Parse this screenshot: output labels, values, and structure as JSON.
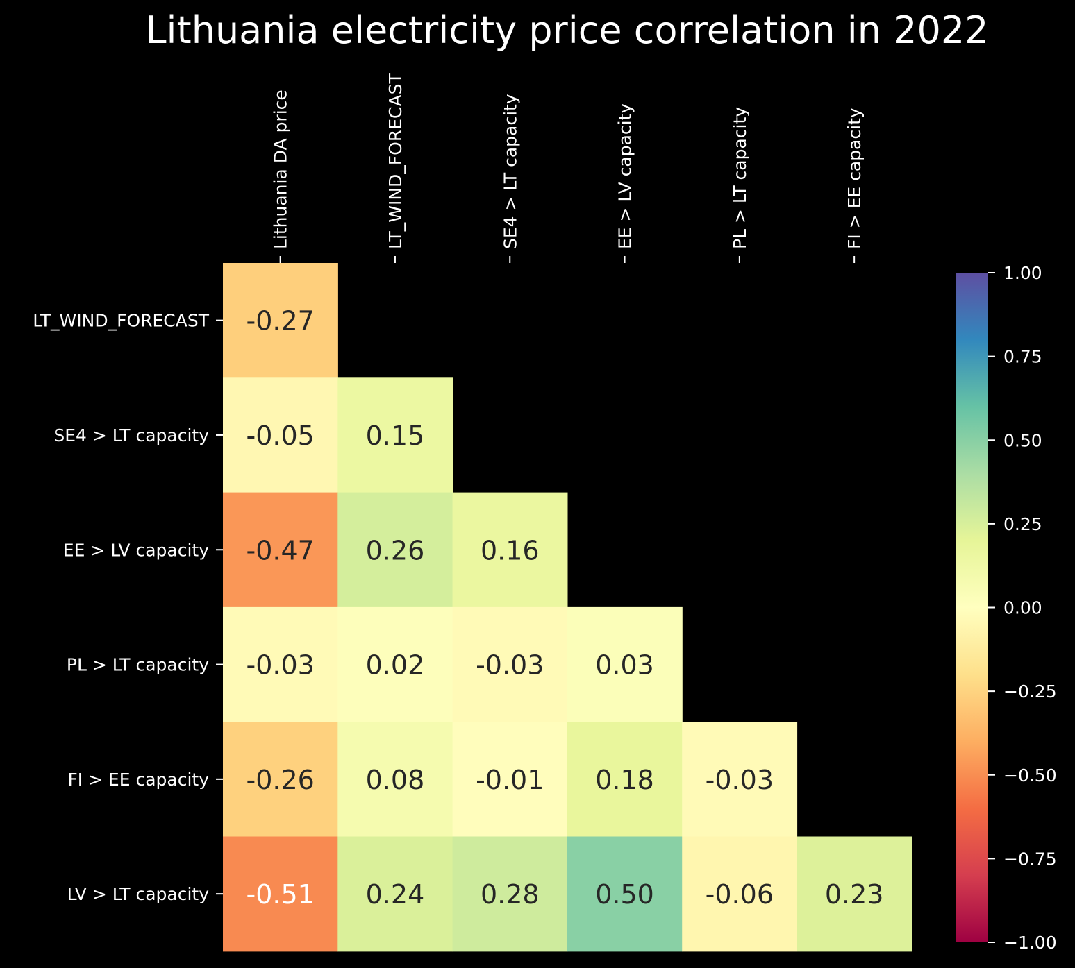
{
  "chart_data": {
    "type": "heatmap",
    "title": "Lithuania electricity price correlation in 2022",
    "x_labels": [
      "Lithuania DA price",
      "LT_WIND_FORECAST",
      "SE4 > LT capacity",
      "EE > LV capacity",
      "PL > LT capacity",
      "FI > EE capacity"
    ],
    "y_labels": [
      "LT_WIND_FORECAST",
      "SE4 > LT capacity",
      "EE > LV capacity",
      "PL > LT capacity",
      "FI > EE capacity",
      "LV > LT capacity"
    ],
    "values": [
      [
        -0.27,
        null,
        null,
        null,
        null,
        null
      ],
      [
        -0.05,
        0.15,
        null,
        null,
        null,
        null
      ],
      [
        -0.47,
        0.26,
        0.16,
        null,
        null,
        null
      ],
      [
        -0.03,
        0.02,
        -0.03,
        0.03,
        null,
        null
      ],
      [
        -0.26,
        0.08,
        -0.01,
        0.18,
        -0.03,
        null
      ],
      [
        -0.51,
        0.24,
        0.28,
        0.5,
        -0.06,
        0.23
      ]
    ],
    "value_labels": [
      [
        "-0.27",
        "",
        "",
        "",
        "",
        ""
      ],
      [
        "-0.05",
        "0.15",
        "",
        "",
        "",
        ""
      ],
      [
        "-0.47",
        "0.26",
        "0.16",
        "",
        "",
        ""
      ],
      [
        "-0.03",
        "0.02",
        "-0.03",
        "0.03",
        "",
        ""
      ],
      [
        "-0.26",
        "0.08",
        "-0.01",
        "0.18",
        "-0.03",
        ""
      ],
      [
        "-0.51",
        "0.24",
        "0.28",
        "0.50",
        "-0.06",
        "0.23"
      ]
    ],
    "colormap": "Spectral",
    "vmin": -1.0,
    "vmax": 1.0,
    "colorbar_ticks": [
      1.0,
      0.75,
      0.5,
      0.25,
      0.0,
      -0.25,
      -0.5,
      -0.75,
      -1.0
    ],
    "colorbar_tick_labels": [
      "1.00",
      "0.75",
      "0.50",
      "0.25",
      "0.00",
      "−0.25",
      "−0.50",
      "−0.75",
      "−1.00"
    ],
    "x_tick_position": "top",
    "background": "#000000",
    "text_color": "#ffffff"
  }
}
